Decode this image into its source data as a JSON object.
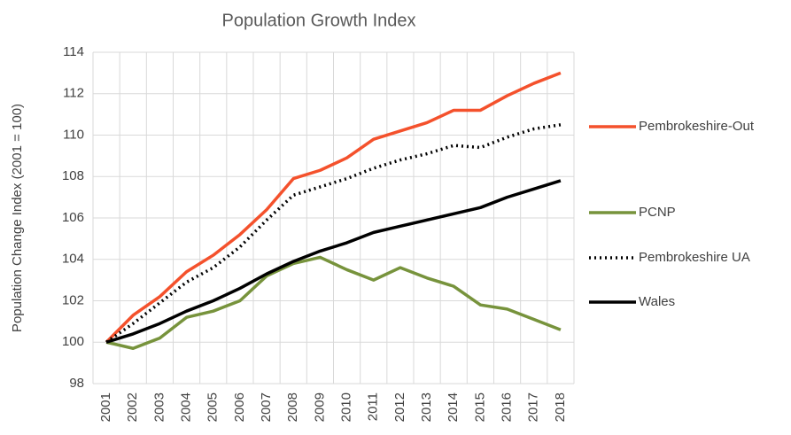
{
  "chart_data": {
    "type": "line",
    "title": "Population Growth Index",
    "y_label": "Population Change Index (2001 = 100)",
    "categories": [
      "2001",
      "2002",
      "2003",
      "2004",
      "2005",
      "2006",
      "2007",
      "2008",
      "2009",
      "2010",
      "2011",
      "2012",
      "2013",
      "2014",
      "2015",
      "2016",
      "2017",
      "2018"
    ],
    "series": [
      {
        "name": "Pembrokeshire-Out",
        "color": "#f4512c",
        "line_style": "solid",
        "values": [
          100,
          101.3,
          102.2,
          103.4,
          104.2,
          105.2,
          106.4,
          107.9,
          108.3,
          108.9,
          109.8,
          110.2,
          110.6,
          111.2,
          111.2,
          111.9,
          112.5,
          113.0
        ]
      },
      {
        "name": "PCNP",
        "color": "#77933c",
        "line_style": "solid",
        "values": [
          100,
          99.7,
          100.2,
          101.2,
          101.5,
          102.0,
          103.2,
          103.8,
          104.1,
          103.5,
          103.0,
          103.6,
          103.1,
          102.7,
          101.8,
          101.6,
          101.1,
          100.6
        ]
      },
      {
        "name": "Pembrokeshire UA",
        "color": "#000000",
        "line_style": "dotted",
        "values": [
          100,
          100.9,
          101.9,
          102.9,
          103.6,
          104.6,
          105.9,
          107.1,
          107.5,
          107.9,
          108.4,
          108.8,
          109.1,
          109.5,
          109.4,
          109.9,
          110.3,
          110.5
        ]
      },
      {
        "name": "Wales",
        "color": "#000000",
        "line_style": "solid",
        "values": [
          100,
          100.4,
          100.9,
          101.5,
          102.0,
          102.6,
          103.3,
          103.9,
          104.4,
          104.8,
          105.3,
          105.6,
          105.9,
          106.2,
          106.5,
          107.0,
          107.4,
          107.8
        ]
      }
    ],
    "ylim": [
      98,
      114
    ],
    "yticks": [
      98,
      100,
      102,
      104,
      106,
      108,
      110,
      112,
      114
    ],
    "grid": true,
    "legend": "right"
  }
}
